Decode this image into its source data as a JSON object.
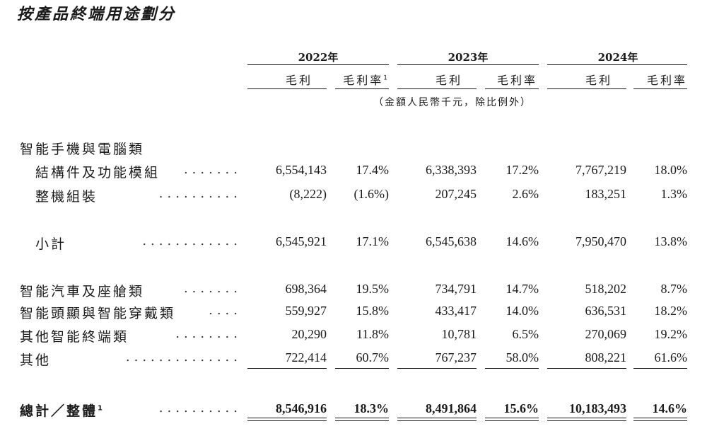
{
  "title": "按產品終端用途劃分",
  "years": [
    "2022年",
    "2023年",
    "2024年"
  ],
  "col_gross_profit": "毛利",
  "col_margin": "毛利率",
  "footnote_mark": "1",
  "unit_note": "（金額人民幣千元，除比例外）",
  "sections": {
    "smartphone_pc": "智能手機與電腦類"
  },
  "rows": [
    {
      "label": "結構件及功能模組",
      "dots": ".......",
      "v": [
        "6,554,143",
        "17.4%",
        "6,338,393",
        "17.2%",
        "7,767,219",
        "18.0%"
      ]
    },
    {
      "label": "整機組裝",
      "dots": "..........",
      "v": [
        "(8,222)",
        "(1.6%)",
        "207,245",
        "2.6%",
        "183,251",
        "1.3%"
      ]
    },
    {
      "label": "小計",
      "dots": "............",
      "v": [
        "6,545,921",
        "17.1%",
        "6,545,638",
        "14.6%",
        "7,950,470",
        "13.8%"
      ]
    },
    {
      "label": "智能汽車及座艙類",
      "dots": ".......",
      "v": [
        "698,364",
        "19.5%",
        "734,791",
        "14.7%",
        "518,202",
        "8.7%"
      ]
    },
    {
      "label": "智能頭顯與智能穿戴類",
      "dots": "....",
      "v": [
        "559,927",
        "15.8%",
        "433,417",
        "14.0%",
        "636,531",
        "18.2%"
      ]
    },
    {
      "label": "其他智能終端類",
      "dots": "........",
      "v": [
        "20,290",
        "11.8%",
        "10,781",
        "6.5%",
        "270,069",
        "19.2%"
      ]
    },
    {
      "label": "其他",
      "dots": "..............",
      "v": [
        "722,414",
        "60.7%",
        "767,237",
        "58.0%",
        "808,221",
        "61.6%"
      ]
    }
  ],
  "total": {
    "label": "總計／整體",
    "dots": "..........",
    "v": [
      "8,546,916",
      "18.3%",
      "8,491,864",
      "15.6%",
      "10,183,493",
      "14.6%"
    ]
  }
}
